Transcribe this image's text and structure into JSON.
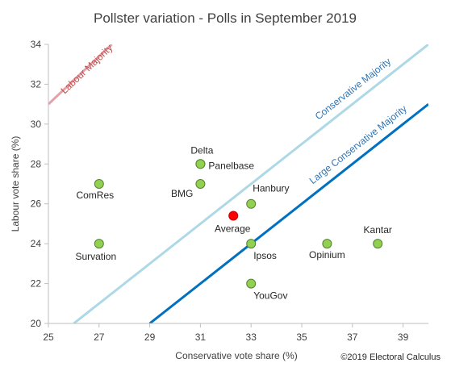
{
  "chart_data": {
    "type": "scatter",
    "title": "Pollster variation - Polls in September 2019",
    "xlabel": "Conservative vote share (%)",
    "ylabel": "Labour vote share (%)",
    "xlim": [
      25,
      40
    ],
    "ylim": [
      20,
      34
    ],
    "xticks": [
      "25",
      "27",
      "29",
      "31",
      "33",
      "35",
      "37",
      "39"
    ],
    "yticks": [
      "20",
      "22",
      "24",
      "26",
      "28",
      "30",
      "32",
      "34"
    ],
    "grid": false,
    "points": [
      {
        "label": "Delta",
        "x": 31,
        "y": 28
      },
      {
        "label": "Panelbase",
        "x": 31,
        "y": 28
      },
      {
        "label": "BMG",
        "x": 31,
        "y": 27
      },
      {
        "label": "ComRes",
        "x": 27,
        "y": 27
      },
      {
        "label": "Hanbury",
        "x": 33,
        "y": 26
      },
      {
        "label": "Survation",
        "x": 27,
        "y": 24
      },
      {
        "label": "Ipsos",
        "x": 33,
        "y": 24
      },
      {
        "label": "Opinium",
        "x": 36,
        "y": 24
      },
      {
        "label": "Kantar",
        "x": 38,
        "y": 24
      },
      {
        "label": "YouGov",
        "x": 33,
        "y": 22
      }
    ],
    "average": {
      "label": "Average",
      "x": 32.3,
      "y": 25.4
    },
    "lines": [
      {
        "name": "Labour Majority",
        "color": "#e6a0a8",
        "text_color": "#c0504d",
        "p1": [
          25,
          31
        ],
        "p2": [
          27.5,
          34
        ]
      },
      {
        "name": "Conservative Majority",
        "color": "#add8e6",
        "text_color": "#2e75b6",
        "p1": [
          26,
          20
        ],
        "p2": [
          40,
          34
        ]
      },
      {
        "name": "Large Conservative Majority",
        "color": "#0070c0",
        "text_color": "#2e75b6",
        "p1": [
          29,
          20
        ],
        "p2": [
          40,
          31
        ]
      }
    ],
    "colors": {
      "point": "#92d050",
      "point_stroke": "#548235",
      "average": "#ff0000",
      "axis": "#bfbfbf"
    }
  },
  "credit": "©2019 Electoral Calculus"
}
